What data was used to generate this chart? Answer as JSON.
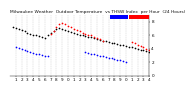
{
  "title": "Milwaukee Weather  Outdoor Temperature  vs THSW Index  per Hour  (24 Hours)",
  "background_color": "#ffffff",
  "grid_color": "#c8c8c8",
  "outdoor_color": "#000000",
  "thsw_color": "#ff0000",
  "blue_color": "#0000ff",
  "legend_blue_color": "#0000ff",
  "legend_red_color": "#ff0000",
  "marker_size": 1.5,
  "title_fontsize": 3.2,
  "tick_fontsize": 3.0,
  "ylim": [
    0,
    90
  ],
  "xlim": [
    0,
    24
  ],
  "yticks": [
    0,
    20,
    40,
    60,
    80
  ],
  "ytick_labels": [
    "0",
    "2",
    "4",
    "6",
    "8"
  ],
  "outdoor_x": [
    0.5,
    1,
    1.5,
    2,
    2.5,
    3,
    3.5,
    4,
    4.5,
    5,
    5.5,
    6,
    6.5,
    7,
    7.5,
    8,
    8.5,
    9,
    9.5,
    10,
    10.5,
    11,
    11.5,
    12,
    12.5,
    13,
    13.5,
    14,
    14.5,
    15,
    15.5,
    16,
    16.5,
    17,
    17.5,
    18,
    18.5,
    19,
    19.5,
    20,
    20.5,
    21,
    21.5,
    22,
    22.5,
    23,
    23.5,
    24
  ],
  "outdoor_y": [
    72,
    71,
    70,
    68,
    66,
    64,
    62,
    61,
    60,
    59,
    57,
    56,
    60,
    64,
    67,
    70,
    71,
    70,
    68,
    66,
    65,
    64,
    62,
    61,
    60,
    59,
    58,
    57,
    56,
    54,
    53,
    52,
    51,
    50,
    49,
    48,
    47,
    46,
    45,
    44,
    43,
    42,
    41,
    40,
    39,
    38,
    37,
    36
  ],
  "thsw_x": [
    7,
    7.5,
    8,
    8.5,
    9,
    9.5,
    10,
    10.5,
    11,
    11.5,
    12,
    12.5,
    13,
    13.5,
    14,
    14.5,
    15,
    15.5,
    16,
    21,
    21.5,
    22,
    22.5,
    23,
    23.5,
    24
  ],
  "thsw_y": [
    62,
    67,
    72,
    76,
    78,
    77,
    74,
    72,
    70,
    68,
    66,
    64,
    62,
    61,
    60,
    58,
    56,
    54,
    52,
    50,
    48,
    46,
    44,
    42,
    40,
    38
  ],
  "blue_x": [
    1,
    1.5,
    2,
    2.5,
    3,
    3.5,
    4,
    4.5,
    5,
    5.5,
    6,
    6.5,
    13,
    13.5,
    14,
    14.5,
    15,
    15.5,
    16,
    16.5,
    17,
    17.5,
    18,
    18.5,
    19,
    19.5,
    20
  ],
  "blue_y": [
    42,
    41,
    40,
    39,
    37,
    36,
    34,
    33,
    32,
    31,
    30,
    29,
    35,
    34,
    33,
    32,
    31,
    30,
    29,
    28,
    27,
    26,
    25,
    24,
    23,
    22,
    21
  ],
  "xtick_pos": [
    1,
    2,
    3,
    4,
    5,
    6,
    7,
    8,
    9,
    10,
    11,
    12,
    13,
    14,
    15,
    16,
    17,
    18,
    19,
    20,
    21,
    22,
    23,
    24
  ],
  "xtick_labels": [
    "1",
    "2",
    "3",
    "4",
    "5",
    "6",
    "7",
    "8",
    "9",
    "0",
    "1",
    "2",
    "3",
    "4",
    "5",
    "6",
    "7",
    "8",
    "9",
    "0",
    "1",
    "2",
    "3",
    "4"
  ]
}
